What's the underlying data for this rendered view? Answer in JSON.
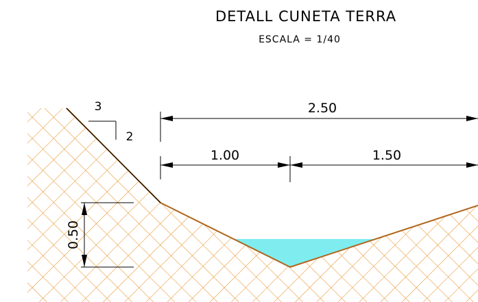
{
  "title": "DETALL CUNETA TERRA",
  "scale": "ESCALA = 1/40",
  "slope_ratio": {
    "horizontal": "3",
    "vertical": "2"
  },
  "dimensions": {
    "total_width": "2.50",
    "left_width": "1.00",
    "right_width": "1.50",
    "depth": "0.50"
  },
  "colors": {
    "ground_line": "#b0651a",
    "hatch": "#e89a3a",
    "water": "#7fecef",
    "dimension": "#000000"
  }
}
